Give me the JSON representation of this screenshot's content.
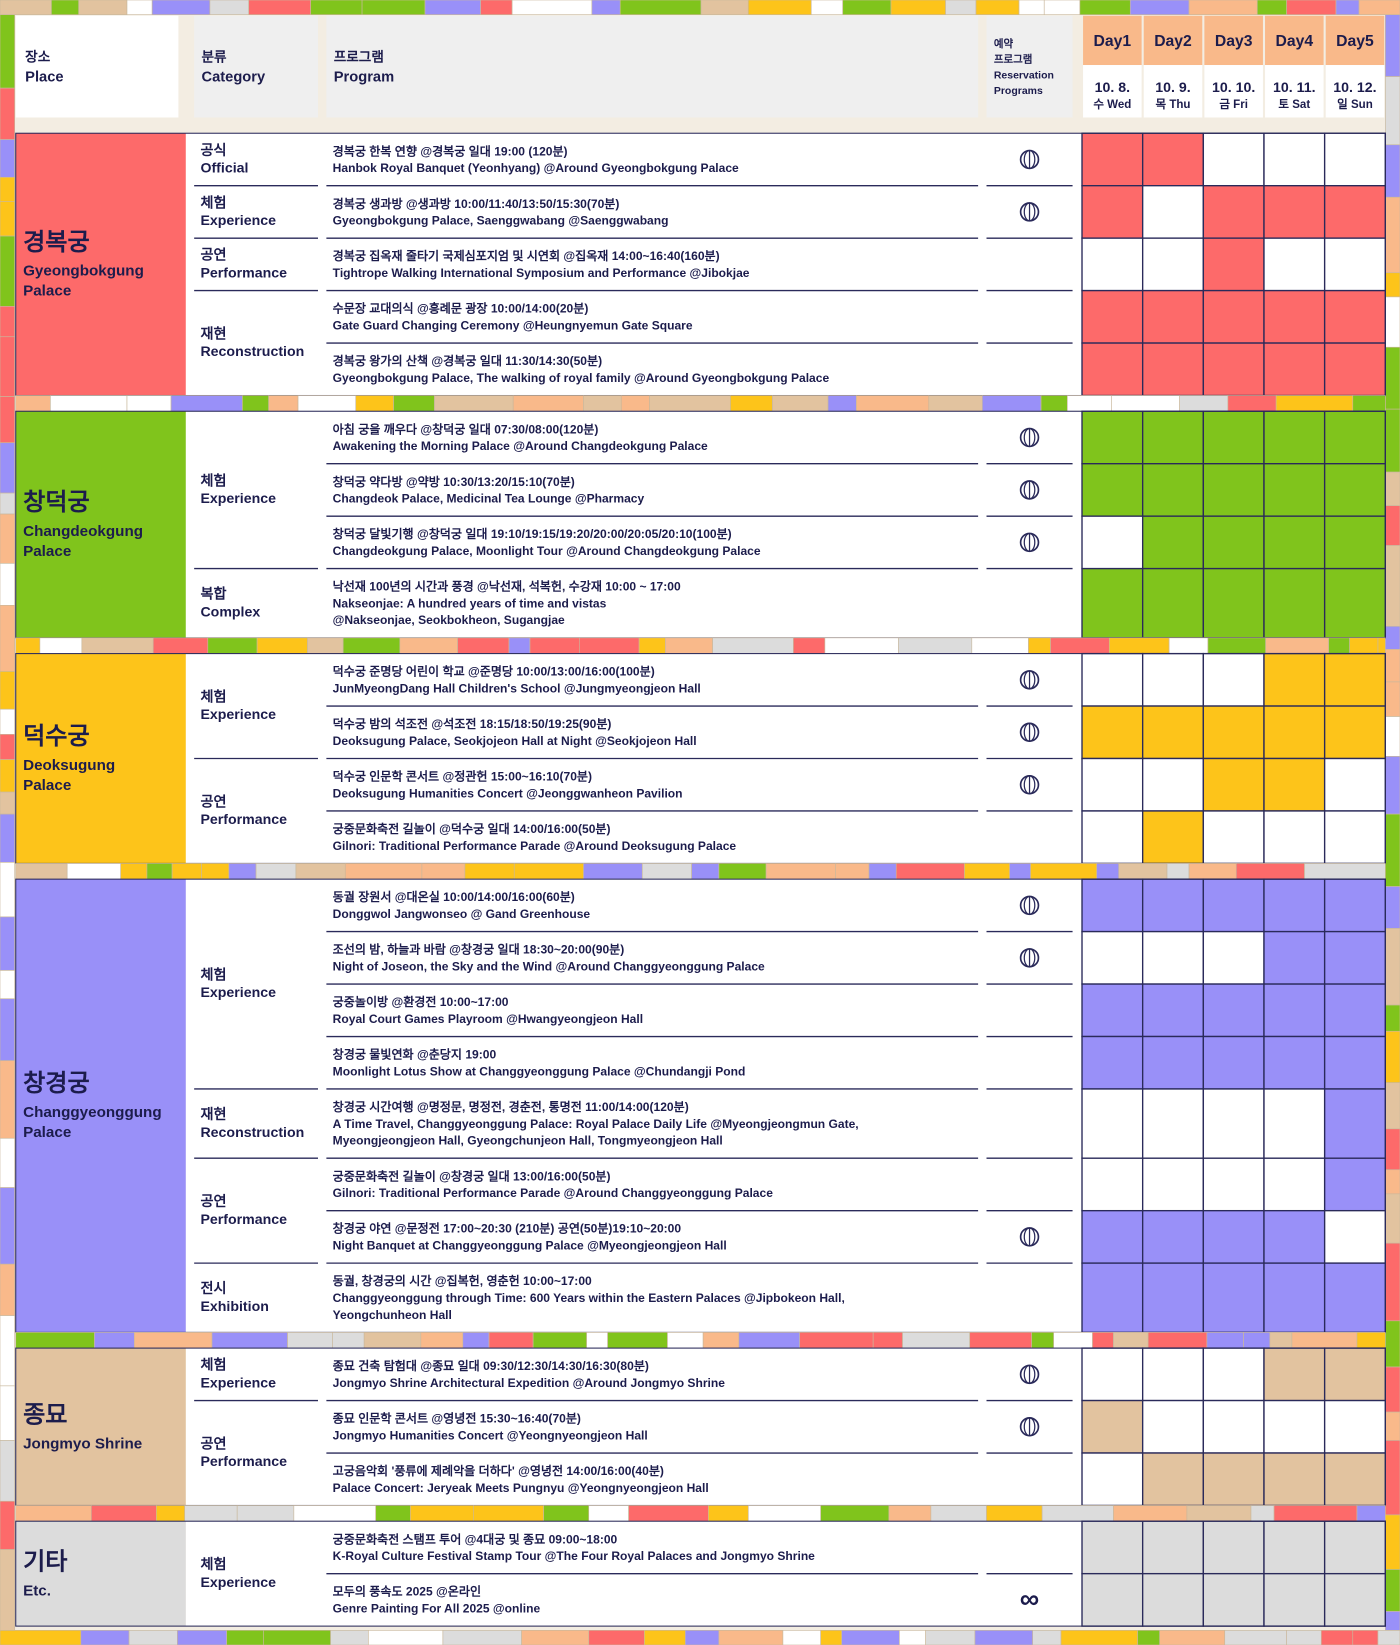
{
  "header": {
    "place": {
      "ko": "장소",
      "en": "Place"
    },
    "category": {
      "ko": "분류",
      "en": "Category"
    },
    "program": {
      "ko": "프로그램",
      "en": "Program"
    },
    "reservation": [
      "예약",
      "프로그램",
      "Reservation",
      "Programs"
    ],
    "days": [
      {
        "label": "Day1",
        "date": "10. 8.",
        "weekday": "수 Wed"
      },
      {
        "label": "Day2",
        "date": "10. 9.",
        "weekday": "목 Thu"
      },
      {
        "label": "Day3",
        "date": "10. 10.",
        "weekday": "금 Fri"
      },
      {
        "label": "Day4",
        "date": "10. 11.",
        "weekday": "토 Sat"
      },
      {
        "label": "Day5",
        "date": "10. 12.",
        "weekday": "일 Sun"
      }
    ]
  },
  "sections": [
    {
      "place": {
        "ko": "경복궁",
        "en": [
          "Gyeongbokgung",
          "Palace"
        ]
      },
      "color": "#fd6a6a",
      "groups": [
        {
          "ko": "공식",
          "en": "Official",
          "programs": [
            {
              "ko": "경복궁 한복 연향 @경복궁 일대 19:00 (120분)",
              "en": [
                "Hanbok Royal Banquet (Yeonhyang) @Around Gyeongbokgung Palace"
              ],
              "reservation": true,
              "days": [
                true,
                true,
                false,
                false,
                false
              ]
            }
          ]
        },
        {
          "ko": "체험",
          "en": "Experience",
          "programs": [
            {
              "ko": "경복궁 생과방 @생과방 10:00/11:40/13:50/15:30(70분)",
              "en": [
                "Gyeongbokgung Palace, Saenggwabang @Saenggwabang"
              ],
              "reservation": true,
              "days": [
                true,
                false,
                true,
                true,
                true
              ]
            }
          ]
        },
        {
          "ko": "공연",
          "en": "Performance",
          "programs": [
            {
              "ko": "경복궁 집옥재 줄타기 국제심포지엄 및 시연회 @집옥재 14:00~16:40(160분)",
              "en": [
                "Tightrope Walking International Symposium and Performance @Jibokjae"
              ],
              "reservation": false,
              "days": [
                false,
                false,
                true,
                false,
                false
              ]
            }
          ]
        },
        {
          "ko": "재현",
          "en": "Reconstruction",
          "programs": [
            {
              "ko": "수문장 교대의식 @흥례문 광장 10:00/14:00(20분)",
              "en": [
                "Gate Guard Changing Ceremony @Heungnyemun Gate Square"
              ],
              "reservation": false,
              "days": [
                true,
                true,
                true,
                true,
                true
              ]
            },
            {
              "ko": "경복궁 왕가의 산책 @경복궁 일대 11:30/14:30(50분)",
              "en": [
                "Gyeongbokgung Palace, The walking of royal family @Around Gyeongbokgung Palace"
              ],
              "reservation": false,
              "days": [
                true,
                true,
                true,
                true,
                true
              ]
            }
          ]
        }
      ]
    },
    {
      "place": {
        "ko": "창덕궁",
        "en": [
          "Changdeokgung",
          "Palace"
        ]
      },
      "color": "#80c41c",
      "groups": [
        {
          "ko": "체험",
          "en": "Experience",
          "programs": [
            {
              "ko": "아침 궁을 깨우다 @창덕궁 일대 07:30/08:00(120분)",
              "en": [
                "Awakening the Morning Palace @Around Changdeokgung Palace"
              ],
              "reservation": true,
              "days": [
                true,
                true,
                true,
                true,
                true
              ]
            },
            {
              "ko": "창덕궁 약다방 @약방 10:30/13:20/15:10(70분)",
              "en": [
                "Changdeok Palace, Medicinal Tea Lounge @Pharmacy"
              ],
              "reservation": true,
              "days": [
                true,
                true,
                true,
                true,
                true
              ]
            },
            {
              "ko": "창덕궁 달빛기행 @창덕궁 일대 19:10/19:15/19:20/20:00/20:05/20:10(100분)",
              "en": [
                "Changdeokgung Palace, Moonlight Tour @Around Changdeokgung Palace"
              ],
              "reservation": true,
              "days": [
                false,
                true,
                true,
                true,
                true
              ]
            }
          ]
        },
        {
          "ko": "복합",
          "en": "Complex",
          "programs": [
            {
              "ko": "낙선재 100년의 시간과 풍경 @낙선재, 석복헌, 수강재 10:00 ~ 17:00",
              "en": [
                "Nakseonjae: A hundred years of time and vistas",
                "@Nakseonjae, Seokbokheon, Sugangjae"
              ],
              "reservation": false,
              "days": [
                true,
                true,
                true,
                true,
                true
              ]
            }
          ]
        }
      ]
    },
    {
      "place": {
        "ko": "덕수궁",
        "en": [
          "Deoksugung",
          "Palace"
        ]
      },
      "color": "#fdc41a",
      "groups": [
        {
          "ko": "체험",
          "en": "Experience",
          "programs": [
            {
              "ko": "덕수궁 준명당 어린이 학교 @준명당 10:00/13:00/16:00(100분)",
              "en": [
                "JunMyeongDang Hall Children's School @Jungmyeongjeon Hall"
              ],
              "reservation": true,
              "days": [
                false,
                false,
                false,
                true,
                true
              ]
            },
            {
              "ko": "덕수궁 밤의 석조전 @석조전 18:15/18:50/19:25(90분)",
              "en": [
                "Deoksugung Palace, Seokjojeon Hall at Night @Seokjojeon Hall"
              ],
              "reservation": true,
              "days": [
                true,
                true,
                true,
                true,
                true
              ]
            }
          ]
        },
        {
          "ko": "공연",
          "en": "Performance",
          "programs": [
            {
              "ko": "덕수궁 인문학 콘서트 @정관헌 15:00~16:10(70분)",
              "en": [
                "Deoksugung Humanities Concert @Jeonggwanheon Pavilion"
              ],
              "reservation": true,
              "days": [
                false,
                false,
                true,
                true,
                false
              ]
            },
            {
              "ko": "궁중문화축전 길놀이 @덕수궁 일대 14:00/16:00(50분)",
              "en": [
                "Gilnori: Traditional Performance Parade @Around Deoksugung Palace"
              ],
              "reservation": false,
              "days": [
                false,
                true,
                false,
                false,
                false
              ]
            }
          ]
        }
      ]
    },
    {
      "place": {
        "ko": "창경궁",
        "en": [
          "Changgyeonggung",
          "Palace"
        ]
      },
      "color": "#9990f8",
      "groups": [
        {
          "ko": "체험",
          "en": "Experience",
          "programs": [
            {
              "ko": "동궐 장원서 @대온실 10:00/14:00/16:00(60분)",
              "en": [
                "Donggwol Jangwonseo @   Gand Greenhouse"
              ],
              "reservation": true,
              "days": [
                true,
                true,
                true,
                true,
                true
              ]
            },
            {
              "ko": "조선의 밤, 하늘과 바람 @창경궁 일대 18:30~20:00(90분)",
              "en": [
                "Night of Joseon, the Sky and the Wind @Around Changgyeonggung Palace"
              ],
              "reservation": true,
              "days": [
                false,
                false,
                false,
                true,
                true
              ]
            },
            {
              "ko": "궁중놀이방 @환경전 10:00~17:00",
              "en": [
                "Royal Court Games Playroom @Hwangyeongjeon Hall"
              ],
              "reservation": false,
              "days": [
                true,
                true,
                true,
                true,
                true
              ]
            },
            {
              "ko": "창경궁 물빛연화 @춘당지 19:00",
              "en": [
                "Moonlight Lotus Show at Changgyeonggung Palace @Chundangji Pond"
              ],
              "reservation": false,
              "days": [
                true,
                true,
                true,
                true,
                true
              ]
            }
          ]
        },
        {
          "ko": "재현",
          "en": "Reconstruction",
          "programs": [
            {
              "ko": "창경궁 시간여행 @명정문, 명정전, 경춘전, 통명전 11:00/14:00(120분)",
              "en": [
                "A Time Travel, Changgyeonggung Palace: Royal Palace Daily Life @Myeongjeongmun Gate,",
                "Myeongjeongjeon Hall, Gyeongchunjeon Hall, Tongmyeongjeon Hall"
              ],
              "reservation": false,
              "days": [
                false,
                false,
                false,
                false,
                true
              ]
            }
          ]
        },
        {
          "ko": "공연",
          "en": "Performance",
          "programs": [
            {
              "ko": "궁중문화축전 길놀이 @창경궁 일대 13:00/16:00(50분)",
              "en": [
                "Gilnori: Traditional Performance Parade @Around Changgyeonggung Palace"
              ],
              "reservation": false,
              "days": [
                false,
                false,
                false,
                false,
                true
              ]
            },
            {
              "ko": "창경궁 야연 @문정전 17:00~20:30 (210분) 공연(50분)19:10~20:00",
              "en": [
                "Night Banquet at Changgyeonggung Palace @Myeongjeongjeon Hall"
              ],
              "reservation": true,
              "days": [
                true,
                true,
                true,
                true,
                false
              ]
            }
          ]
        },
        {
          "ko": "전시",
          "en": "Exhibition",
          "programs": [
            {
              "ko": "동궐, 창경궁의 시간 @집복헌, 영춘헌 10:00~17:00",
              "en": [
                "Changgyeonggung through Time: 600 Years within the Eastern Palaces @Jipbokeon Hall,",
                "Yeongchunheon Hall"
              ],
              "reservation": false,
              "days": [
                true,
                true,
                true,
                true,
                true
              ]
            }
          ]
        }
      ]
    },
    {
      "place": {
        "ko": "종묘",
        "en": [
          "Jongmyo Shrine"
        ]
      },
      "color": "#e2c39f",
      "groups": [
        {
          "ko": "체험",
          "en": "Experience",
          "programs": [
            {
              "ko": "종묘 건축 탐험대 @종묘 일대 09:30/12:30/14:30/16:30(80분)",
              "en": [
                "Jongmyo Shrine Architectural Expedition @Around Jongmyo Shrine"
              ],
              "reservation": true,
              "days": [
                false,
                false,
                false,
                true,
                true
              ]
            }
          ]
        },
        {
          "ko": "공연",
          "en": "Performance",
          "programs": [
            {
              "ko": "종묘 인문학 콘서트 @영녕전 15:30~16:40(70분)",
              "en": [
                "Jongmyo  Humanities Concert @Yeongnyeongjeon Hall"
              ],
              "reservation": true,
              "days": [
                true,
                false,
                false,
                false,
                false
              ]
            },
            {
              "ko": "고궁음악회 '풍류에 제례악을 더하다' @영녕전 14:00/16:00(40분)",
              "en": [
                "Palace Concert: Jeryeak Meets Pungnyu @Yeongnyeongjeon Hall"
              ],
              "reservation": false,
              "days": [
                false,
                true,
                true,
                true,
                true
              ]
            }
          ]
        }
      ]
    },
    {
      "place": {
        "ko": "기타",
        "en": [
          "Etc."
        ]
      },
      "color": "#dcdcdc",
      "groups": [
        {
          "ko": "체험",
          "en": "Experience",
          "programs": [
            {
              "ko": "궁중문화축전 스탬프 투어 @4대궁 및 종묘 09:00~18:00",
              "en": [
                "K-Royal Culture Festival Stamp Tour @The Four Royal Palaces and Jongmyo Shrine"
              ],
              "reservation": false,
              "days": [
                true,
                true,
                true,
                true,
                true
              ]
            },
            {
              "ko": "모두의 풍속도 2025 @온라인",
              "en": [
                "Genre Painting For All 2025 @online"
              ],
              "reservation": false,
              "reservation_label": "∞",
              "days": [
                true,
                true,
                true,
                true,
                true
              ]
            }
          ]
        }
      ]
    }
  ]
}
